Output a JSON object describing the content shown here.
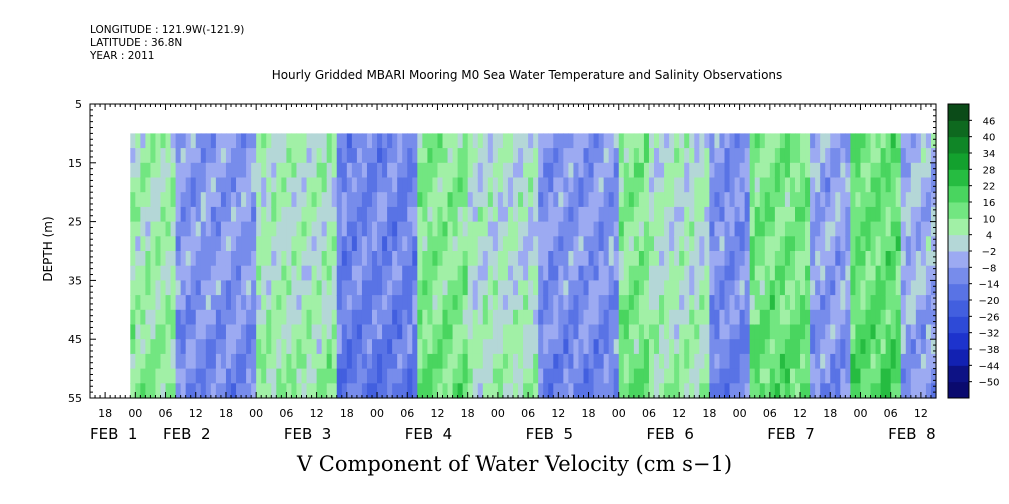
{
  "header": {
    "longitude": "LONGITUDE : 121.9W(-121.9)",
    "latitude": "LATITUDE : 36.8N",
    "year": "YEAR : 2011"
  },
  "chart_data": {
    "type": "heatmap",
    "title": "Hourly Gridded MBARI Mooring M0 Sea Water Temperature and Salinity Observations",
    "xlabel": "V Component of Water Velocity (cm s−1)",
    "ylabel": "DEPTH (m)",
    "y_ticks": [
      5,
      15,
      25,
      35,
      45,
      55
    ],
    "ylim": [
      5,
      55
    ],
    "y_inverted": true,
    "x_range_hours": [
      -9,
      159
    ],
    "x_hour_ticks": [
      {
        "h": -6,
        "label": "18"
      },
      {
        "h": 0,
        "label": "00"
      },
      {
        "h": 6,
        "label": "06"
      },
      {
        "h": 12,
        "label": "12"
      },
      {
        "h": 18,
        "label": "18"
      },
      {
        "h": 24,
        "label": "00"
      },
      {
        "h": 30,
        "label": "06"
      },
      {
        "h": 36,
        "label": "12"
      },
      {
        "h": 42,
        "label": "18"
      },
      {
        "h": 48,
        "label": "00"
      },
      {
        "h": 54,
        "label": "06"
      },
      {
        "h": 60,
        "label": "12"
      },
      {
        "h": 66,
        "label": "18"
      },
      {
        "h": 72,
        "label": "00"
      },
      {
        "h": 78,
        "label": "06"
      },
      {
        "h": 84,
        "label": "12"
      },
      {
        "h": 90,
        "label": "18"
      },
      {
        "h": 96,
        "label": "00"
      },
      {
        "h": 102,
        "label": "06"
      },
      {
        "h": 108,
        "label": "12"
      },
      {
        "h": 114,
        "label": "18"
      },
      {
        "h": 120,
        "label": "00"
      },
      {
        "h": 126,
        "label": "06"
      },
      {
        "h": 132,
        "label": "12"
      },
      {
        "h": 138,
        "label": "18"
      },
      {
        "h": 144,
        "label": "00"
      },
      {
        "h": 150,
        "label": "06"
      },
      {
        "h": 156,
        "label": "12"
      }
    ],
    "x_day_labels": [
      {
        "h": -9,
        "label": "FEB  1"
      },
      {
        "h": 5.5,
        "label": "FEB  2"
      },
      {
        "h": 29.5,
        "label": "FEB  3"
      },
      {
        "h": 53.5,
        "label": "FEB  4"
      },
      {
        "h": 77.5,
        "label": "FEB  5"
      },
      {
        "h": 101.5,
        "label": "FEB  6"
      },
      {
        "h": 125.5,
        "label": "FEB  7"
      },
      {
        "h": 149.5,
        "label": "FEB  8"
      }
    ],
    "data_time_range_hours": [
      -1,
      159
    ],
    "data_depth_range": [
      10,
      55
    ],
    "colorbar": {
      "levels": [
        -50,
        -44,
        -38,
        -32,
        -26,
        -20,
        -14,
        -8,
        -2,
        4,
        10,
        16,
        22,
        28,
        34,
        40,
        46
      ],
      "labels": [
        "46",
        "40",
        "34",
        "28",
        "22",
        "16",
        "10",
        "4",
        "−2",
        "−8",
        "−14",
        "−20",
        "−26",
        "−32",
        "−38",
        "−44",
        "−50"
      ]
    },
    "bands": [
      {
        "t0": -1,
        "t1": 8,
        "value": 6
      },
      {
        "t0": 8,
        "t1": 24,
        "value": -8
      },
      {
        "t0": 24,
        "t1": 40,
        "value": 4
      },
      {
        "t0": 40,
        "t1": 56,
        "value": -12
      },
      {
        "t0": 56,
        "t1": 66,
        "value": 10
      },
      {
        "t0": 66,
        "t1": 80,
        "value": 2
      },
      {
        "t0": 80,
        "t1": 96,
        "value": -9
      },
      {
        "t0": 96,
        "t1": 102,
        "value": 10
      },
      {
        "t0": 102,
        "t1": 114,
        "value": 3
      },
      {
        "t0": 114,
        "t1": 122,
        "value": -10
      },
      {
        "t0": 122,
        "t1": 134,
        "value": 12
      },
      {
        "t0": 134,
        "t1": 142,
        "value": -6
      },
      {
        "t0": 142,
        "t1": 152,
        "value": 14
      },
      {
        "t0": 152,
        "t1": 159,
        "value": -4
      }
    ]
  }
}
